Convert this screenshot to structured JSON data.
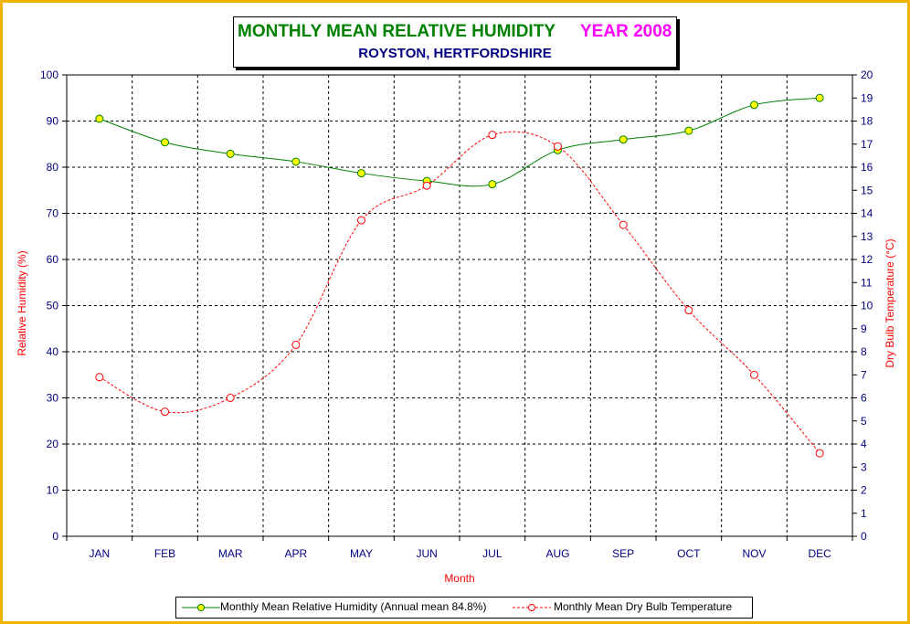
{
  "title": {
    "main": "MONTHLY MEAN RELATIVE HUMIDITY",
    "year": "YEAR 2008",
    "subtitle": "ROYSTON, HERTFORDSHIRE"
  },
  "colors": {
    "title_green": "#008000",
    "title_magenta": "#ff00ff",
    "subtitle": "#000080",
    "frame": "#f0b400",
    "humidity_line": "#008000",
    "humidity_marker": "#ffff00",
    "temperature_line": "#ff0000",
    "axis_text": "#000080",
    "axis_label": "#ff0000"
  },
  "chart_data": {
    "type": "line",
    "xlabel": "Month",
    "ylabel": "Relative Humidity (%)",
    "y2label": "Dry Bulb Temperature (°C)",
    "ylim": [
      0,
      100
    ],
    "y2lim": [
      0,
      20
    ],
    "yticks": [
      "0",
      "10",
      "20",
      "30",
      "40",
      "50",
      "60",
      "70",
      "80",
      "90",
      "100"
    ],
    "y2ticks": [
      "0",
      "1",
      "2",
      "3",
      "4",
      "5",
      "6",
      "7",
      "8",
      "9",
      "10",
      "11",
      "12",
      "13",
      "14",
      "15",
      "16",
      "17",
      "18",
      "19",
      "20"
    ],
    "categories": [
      "JAN",
      "FEB",
      "MAR",
      "APR",
      "MAY",
      "JUN",
      "JUL",
      "AUG",
      "SEP",
      "OCT",
      "NOV",
      "DEC"
    ],
    "grid": true,
    "legend_position": "bottom",
    "series": [
      {
        "name": "Monthly Mean Relative Humidity (Annual mean 84.8%)",
        "axis": "left",
        "style": "solid",
        "values": [
          90.5,
          85.4,
          82.9,
          81.2,
          78.7,
          77.0,
          76.3,
          83.7,
          86.0,
          87.9,
          93.5,
          95.0
        ]
      },
      {
        "name": "Monthly Mean Dry Bulb Temperature",
        "axis": "right",
        "style": "dashed",
        "values": [
          6.9,
          5.4,
          6.0,
          8.3,
          13.7,
          15.2,
          17.4,
          16.9,
          13.5,
          9.8,
          7.0,
          3.6
        ]
      }
    ]
  }
}
